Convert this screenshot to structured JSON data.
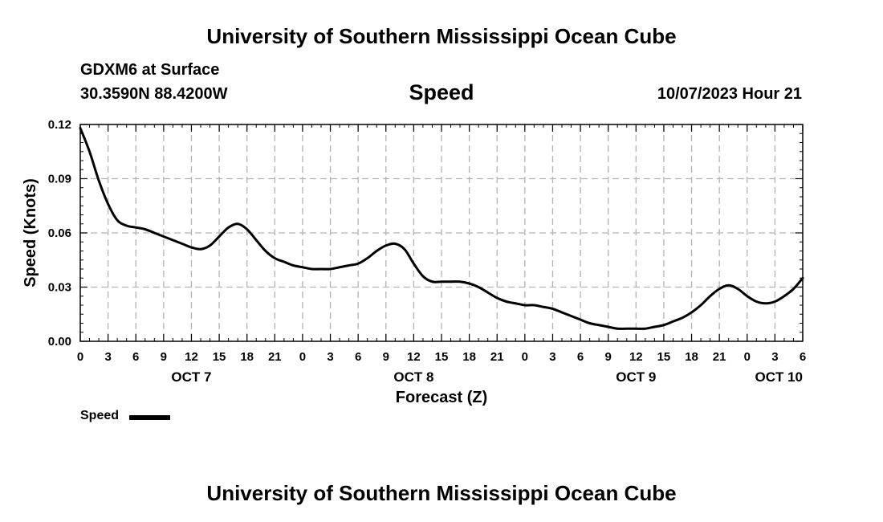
{
  "header": {
    "institution": "University of Southern Mississippi Ocean Cube",
    "station": "GDXM6 at Surface",
    "coordinates": "30.3590N  88.4200W",
    "chart_title": "Speed",
    "datetime": "10/07/2023 Hour 21"
  },
  "footer": {
    "institution": "University of Southern Mississippi Ocean Cube"
  },
  "legend": {
    "label": "Speed"
  },
  "colors": {
    "line": "#000000",
    "grid": "#b3b3b3",
    "background": "#ffffff"
  },
  "chart_data": {
    "type": "line",
    "title": "Speed",
    "xlabel": "Forecast (Z)",
    "ylabel": "Speed (Knots)",
    "xlim": [
      0,
      78
    ],
    "ylim": [
      0,
      0.12
    ],
    "grid": true,
    "legend_position": "bottom-left",
    "yticks": [
      {
        "value": 0,
        "label": "0.00"
      },
      {
        "value": 0.03,
        "label": "0.03"
      },
      {
        "value": 0.06,
        "label": "0.06"
      },
      {
        "value": 0.09,
        "label": "0.09"
      },
      {
        "value": 0.12,
        "label": "0.12"
      }
    ],
    "xticks": [
      {
        "value": 0,
        "label": "0"
      },
      {
        "value": 3,
        "label": "3"
      },
      {
        "value": 6,
        "label": "6"
      },
      {
        "value": 9,
        "label": "9"
      },
      {
        "value": 12,
        "label": "12"
      },
      {
        "value": 15,
        "label": "15"
      },
      {
        "value": 18,
        "label": "18"
      },
      {
        "value": 21,
        "label": "21"
      },
      {
        "value": 24,
        "label": "0"
      },
      {
        "value": 27,
        "label": "3"
      },
      {
        "value": 30,
        "label": "6"
      },
      {
        "value": 33,
        "label": "9"
      },
      {
        "value": 36,
        "label": "12"
      },
      {
        "value": 39,
        "label": "15"
      },
      {
        "value": 42,
        "label": "18"
      },
      {
        "value": 45,
        "label": "21"
      },
      {
        "value": 48,
        "label": "0"
      },
      {
        "value": 51,
        "label": "3"
      },
      {
        "value": 54,
        "label": "6"
      },
      {
        "value": 57,
        "label": "9"
      },
      {
        "value": 60,
        "label": "12"
      },
      {
        "value": 63,
        "label": "15"
      },
      {
        "value": 66,
        "label": "18"
      },
      {
        "value": 69,
        "label": "21"
      },
      {
        "value": 72,
        "label": "0"
      },
      {
        "value": 75,
        "label": "3"
      },
      {
        "value": 78,
        "label": "6"
      }
    ],
    "day_labels": [
      {
        "value": 12,
        "label": "OCT 7"
      },
      {
        "value": 36,
        "label": "OCT 8"
      },
      {
        "value": 60,
        "label": "OCT 9"
      },
      {
        "value": 78,
        "label": "OCT 10"
      }
    ],
    "series": [
      {
        "name": "Speed",
        "x": [
          0,
          1,
          2,
          3,
          4,
          5,
          6,
          7,
          8,
          9,
          10,
          11,
          12,
          13,
          14,
          15,
          16,
          17,
          18,
          19,
          20,
          21,
          22,
          23,
          24,
          25,
          26,
          27,
          28,
          29,
          30,
          31,
          32,
          33,
          34,
          35,
          36,
          37,
          38,
          39,
          40,
          41,
          42,
          43,
          44,
          45,
          46,
          47,
          48,
          49,
          50,
          51,
          52,
          53,
          54,
          55,
          56,
          57,
          58,
          59,
          60,
          61,
          62,
          63,
          64,
          65,
          66,
          67,
          68,
          69,
          70,
          71,
          72,
          73,
          74,
          75,
          76,
          77,
          78
        ],
        "values": [
          0.118,
          0.105,
          0.089,
          0.076,
          0.067,
          0.064,
          0.063,
          0.062,
          0.06,
          0.058,
          0.056,
          0.054,
          0.052,
          0.051,
          0.053,
          0.058,
          0.063,
          0.065,
          0.062,
          0.056,
          0.05,
          0.046,
          0.044,
          0.042,
          0.041,
          0.04,
          0.04,
          0.04,
          0.041,
          0.042,
          0.043,
          0.046,
          0.05,
          0.053,
          0.054,
          0.051,
          0.043,
          0.036,
          0.033,
          0.033,
          0.033,
          0.033,
          0.032,
          0.03,
          0.027,
          0.024,
          0.022,
          0.021,
          0.02,
          0.02,
          0.019,
          0.018,
          0.016,
          0.014,
          0.012,
          0.01,
          0.009,
          0.008,
          0.007,
          0.007,
          0.007,
          0.007,
          0.008,
          0.009,
          0.011,
          0.013,
          0.016,
          0.02,
          0.025,
          0.029,
          0.031,
          0.029,
          0.025,
          0.022,
          0.021,
          0.022,
          0.025,
          0.029,
          0.035
        ]
      }
    ]
  }
}
